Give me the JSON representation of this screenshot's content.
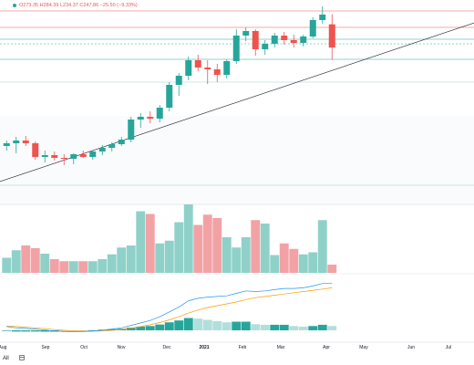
{
  "header": {
    "ohlc_text": "O273.35 H284.39 L234.37 C247.86 −25.50 (−9.33%)",
    "status_color": "#26a69a"
  },
  "toolbar": {
    "range_label": "All",
    "calendar_icon": "calendar-icon"
  },
  "colors": {
    "up": "#26a69a",
    "down": "#ef5350",
    "volume_up": "#8fd1c9",
    "volume_down": "#f2a2a5",
    "macd_line": "#2196f3",
    "signal_line": "#ff9800",
    "hist_up": "#26a69a",
    "hist_up_light": "#b2dfdb",
    "resistance": "#ef5350",
    "support_green": "#26a69a",
    "support_light": "#9ad1c8",
    "trendline": "#131722"
  },
  "chart_data": {
    "type": "candlestick",
    "interval": "weekly",
    "x_axis_labels": [
      "Aug",
      "Sep",
      "Oct",
      "Nov",
      "Dec",
      "2021",
      "Feb",
      "Mar",
      "Apr",
      "May",
      "Jun",
      "Jul"
    ],
    "y_range": [
      60,
      300
    ],
    "candles": [
      {
        "o": 140,
        "h": 146,
        "l": 135,
        "c": 143
      },
      {
        "o": 143,
        "h": 150,
        "l": 132,
        "c": 146
      },
      {
        "o": 146,
        "h": 151,
        "l": 140,
        "c": 143
      },
      {
        "o": 143,
        "h": 145,
        "l": 125,
        "c": 128
      },
      {
        "o": 128,
        "h": 135,
        "l": 122,
        "c": 130
      },
      {
        "o": 130,
        "h": 134,
        "l": 124,
        "c": 127
      },
      {
        "o": 127,
        "h": 131,
        "l": 119,
        "c": 126
      },
      {
        "o": 126,
        "h": 132,
        "l": 120,
        "c": 131
      },
      {
        "o": 131,
        "h": 135,
        "l": 127,
        "c": 128
      },
      {
        "o": 128,
        "h": 135,
        "l": 125,
        "c": 134
      },
      {
        "o": 134,
        "h": 141,
        "l": 130,
        "c": 138
      },
      {
        "o": 138,
        "h": 144,
        "l": 134,
        "c": 142
      },
      {
        "o": 142,
        "h": 150,
        "l": 140,
        "c": 147
      },
      {
        "o": 147,
        "h": 172,
        "l": 144,
        "c": 169
      },
      {
        "o": 169,
        "h": 176,
        "l": 160,
        "c": 172
      },
      {
        "o": 172,
        "h": 178,
        "l": 165,
        "c": 170
      },
      {
        "o": 170,
        "h": 185,
        "l": 166,
        "c": 182
      },
      {
        "o": 182,
        "h": 210,
        "l": 178,
        "c": 207
      },
      {
        "o": 207,
        "h": 220,
        "l": 195,
        "c": 217
      },
      {
        "o": 217,
        "h": 238,
        "l": 212,
        "c": 234
      },
      {
        "o": 234,
        "h": 240,
        "l": 222,
        "c": 226
      },
      {
        "o": 226,
        "h": 234,
        "l": 208,
        "c": 224
      },
      {
        "o": 224,
        "h": 230,
        "l": 210,
        "c": 218
      },
      {
        "o": 218,
        "h": 235,
        "l": 214,
        "c": 233
      },
      {
        "o": 233,
        "h": 268,
        "l": 230,
        "c": 261
      },
      {
        "o": 261,
        "h": 270,
        "l": 255,
        "c": 266
      },
      {
        "o": 266,
        "h": 268,
        "l": 239,
        "c": 246
      },
      {
        "o": 246,
        "h": 256,
        "l": 240,
        "c": 252
      },
      {
        "o": 252,
        "h": 264,
        "l": 248,
        "c": 261
      },
      {
        "o": 261,
        "h": 265,
        "l": 251,
        "c": 256
      },
      {
        "o": 256,
        "h": 262,
        "l": 248,
        "c": 253
      },
      {
        "o": 253,
        "h": 262,
        "l": 249,
        "c": 260
      },
      {
        "o": 260,
        "h": 281,
        "l": 258,
        "c": 278
      },
      {
        "o": 278,
        "h": 293,
        "l": 274,
        "c": 284
      },
      {
        "o": 273.35,
        "h": 284.39,
        "l": 234.37,
        "c": 247.86
      }
    ],
    "volume": {
      "range": [
        0,
        100
      ],
      "values": [
        22,
        33,
        40,
        36,
        28,
        20,
        17,
        17,
        17,
        17,
        20,
        27,
        37,
        40,
        90,
        86,
        43,
        47,
        74,
        100,
        70,
        85,
        80,
        52,
        37,
        52,
        77,
        72,
        26,
        43,
        35,
        27,
        30,
        77,
        12
      ]
    },
    "macd": {
      "range": [
        -5,
        40
      ],
      "macd_line": [
        3,
        2,
        1.5,
        1,
        0.2,
        -0.5,
        -1,
        -1.2,
        -1,
        -0.6,
        0,
        1,
        2,
        4,
        6,
        8,
        11,
        15,
        19,
        24,
        26,
        27,
        27.5,
        28,
        30,
        32,
        31.5,
        32,
        33,
        34,
        34,
        34.5,
        36,
        38,
        38
      ],
      "signal_line": [
        3.5,
        3,
        2.5,
        2,
        1.3,
        0.6,
        0,
        -0.5,
        -0.7,
        -0.7,
        -0.5,
        0,
        0.7,
        1.8,
        3,
        4.5,
        6.3,
        8.5,
        11,
        14,
        16.5,
        18.5,
        20,
        21.5,
        23,
        25,
        26.5,
        27.5,
        28.5,
        29.5,
        30.5,
        31.5,
        32.5,
        33.5,
        34.5
      ],
      "histogram": [
        -0.5,
        -1,
        -1,
        -1,
        -1.1,
        -1.1,
        -1,
        -0.7,
        -0.3,
        0.1,
        0.5,
        1,
        1.3,
        2.2,
        3,
        3.5,
        4.7,
        6.5,
        8,
        10,
        9.5,
        8.5,
        7.5,
        6.5,
        7,
        7,
        5,
        4.5,
        4.5,
        4.5,
        3.5,
        3,
        3.5,
        4.5,
        3.5
      ]
    },
    "horizontal_lines": [
      {
        "value": 288,
        "style": "solid",
        "role": "resistance"
      },
      {
        "value": 270,
        "style": "solid",
        "role": "resistance"
      },
      {
        "value": 257,
        "style": "solid",
        "role": "support"
      },
      {
        "value": 252,
        "style": "dashed",
        "role": "support"
      },
      {
        "value": 235,
        "style": "solid",
        "role": "support"
      },
      {
        "value": 210,
        "style": "solid",
        "role": "support-light"
      },
      {
        "value": 97,
        "style": "solid",
        "role": "support-light"
      }
    ],
    "trendline": {
      "from": {
        "bar": -1,
        "price": 100
      },
      "to": {
        "bar": 56,
        "price": 300
      }
    },
    "grid": false
  }
}
